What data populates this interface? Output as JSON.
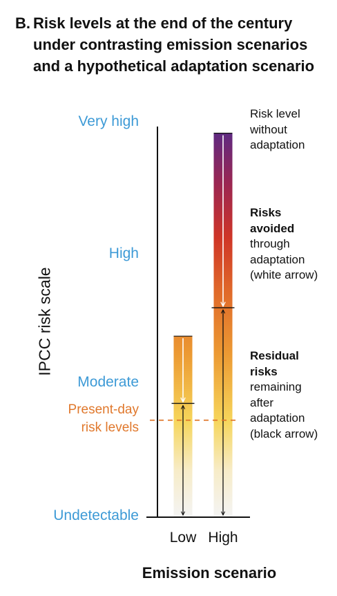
{
  "title": {
    "prefix": "B.",
    "line1": "Risk levels at the end of the century",
    "line2": "under contrasting emission scenarios",
    "line3": "and a hypothetical adaptation scenario"
  },
  "chart_data": {
    "type": "bar",
    "ylabel": "IPCC risk scale",
    "xlabel": "Emission scenario",
    "categories": [
      "Low",
      "High"
    ],
    "y_levels": [
      "Undetectable",
      "Moderate",
      "High",
      "Very high"
    ],
    "y_level_values": [
      0,
      1,
      2,
      3
    ],
    "present_day": {
      "label_line1": "Present-day",
      "label_line2": "risk levels",
      "value": 0.75
    },
    "series": [
      {
        "name": "Risk level without adaptation",
        "values": [
          1.4,
          2.97
        ]
      },
      {
        "name": "Residual risks remaining after adaptation",
        "values": [
          0.88,
          1.62
        ]
      }
    ],
    "colors": {
      "axis": "#111111",
      "level_label": "#3d9ad6",
      "present_day": "#e0782c",
      "gradient": [
        "#f4f4f4",
        "#f6d55a",
        "#e98a2c",
        "#d7412a",
        "#a92748",
        "#5a2a85"
      ]
    }
  },
  "annotations": {
    "without": [
      "Risk level",
      "without",
      "adaptation"
    ],
    "avoided_bold": [
      "Risks",
      "avoided"
    ],
    "avoided": [
      "through",
      "adaptation",
      "(white arrow)"
    ],
    "residual_bold": [
      "Residual",
      "risks"
    ],
    "residual": [
      "remaining",
      "after",
      "adaptation",
      "(black arrow)"
    ]
  }
}
